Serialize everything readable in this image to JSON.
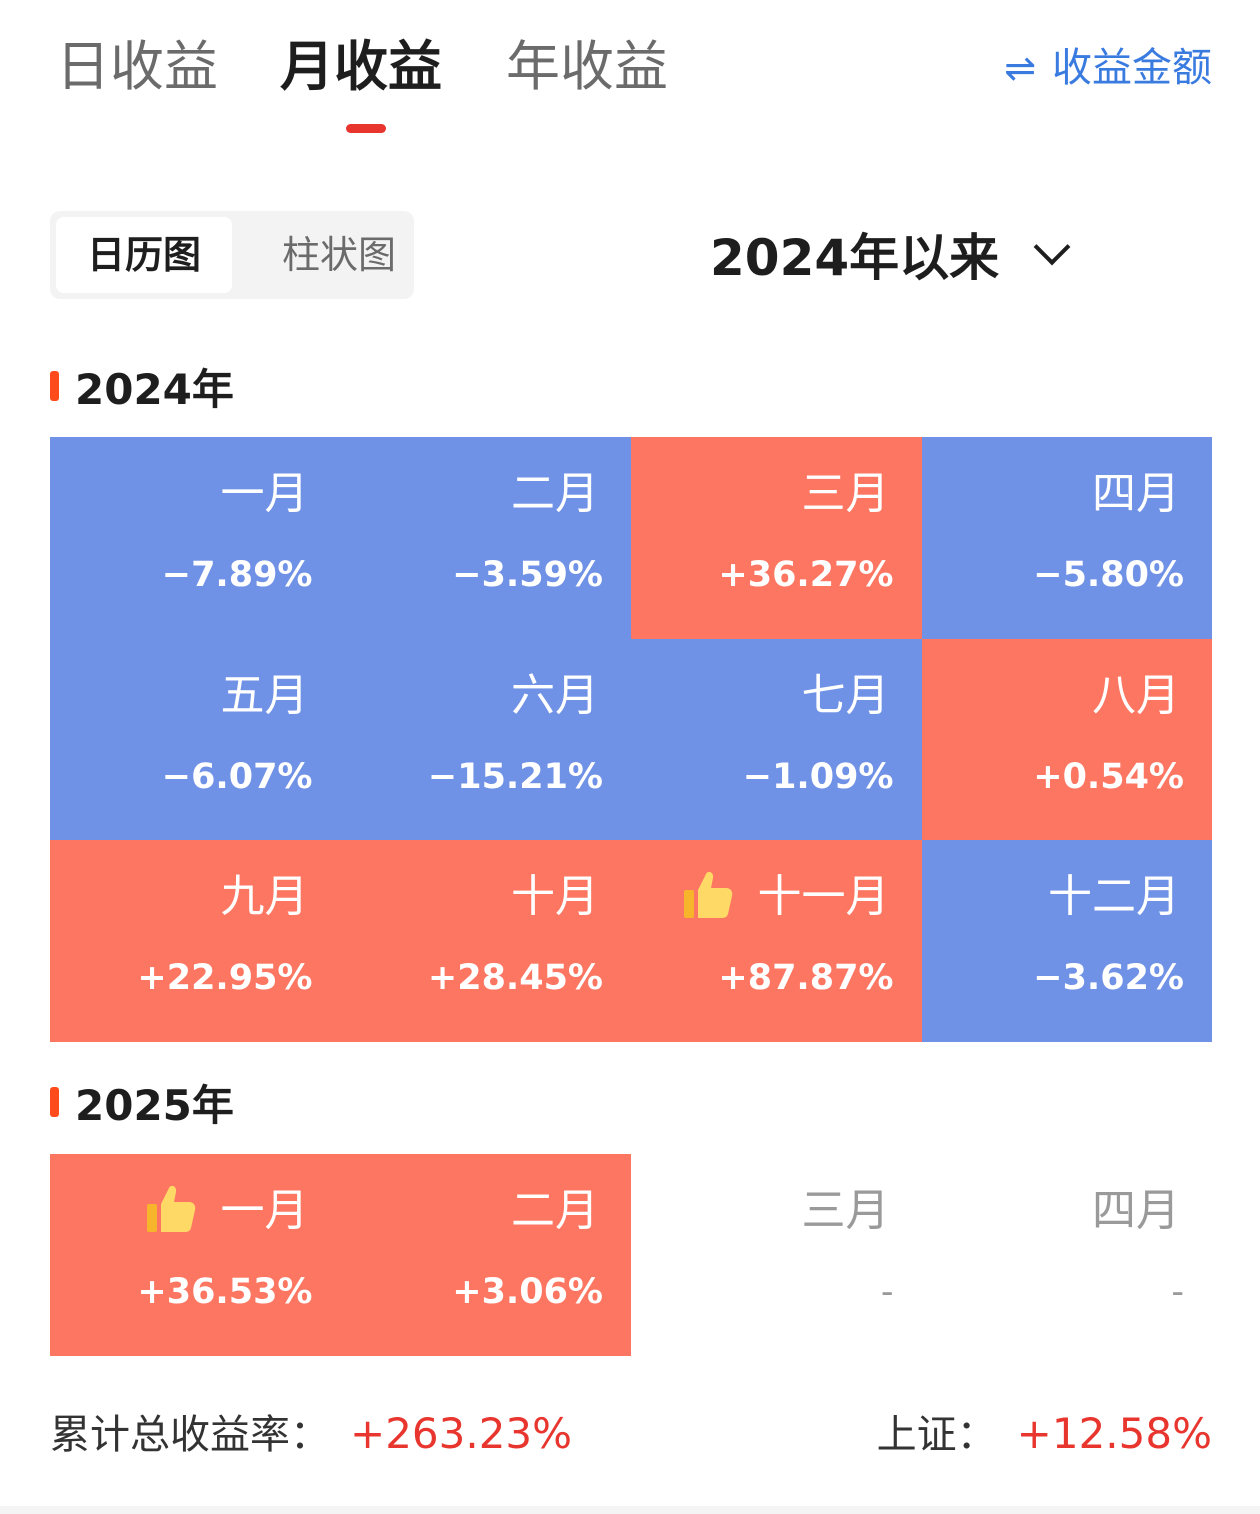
{
  "tabs": {
    "daily": "日收益",
    "monthly": "月收益",
    "yearly": "年收益",
    "amount_toggle": "收益金额",
    "swap_icon": "⇌"
  },
  "view": {
    "calendar": "日历图",
    "bar": "柱状图"
  },
  "range": {
    "label": "2024年以来"
  },
  "year2024": {
    "title": "2024年",
    "months": [
      {
        "name": "一月",
        "value": "−7.89%",
        "sign": "neg"
      },
      {
        "name": "二月",
        "value": "−3.59%",
        "sign": "neg"
      },
      {
        "name": "三月",
        "value": "+36.27%",
        "sign": "pos"
      },
      {
        "name": "四月",
        "value": "−5.80%",
        "sign": "neg"
      },
      {
        "name": "五月",
        "value": "−6.07%",
        "sign": "neg"
      },
      {
        "name": "六月",
        "value": "−15.21%",
        "sign": "neg"
      },
      {
        "name": "七月",
        "value": "−1.09%",
        "sign": "neg"
      },
      {
        "name": "八月",
        "value": "+0.54%",
        "sign": "pos"
      },
      {
        "name": "九月",
        "value": "+22.95%",
        "sign": "pos"
      },
      {
        "name": "十月",
        "value": "+28.45%",
        "sign": "pos"
      },
      {
        "name": "十一月",
        "value": "+87.87%",
        "sign": "pos",
        "best": true
      },
      {
        "name": "十二月",
        "value": "−3.62%",
        "sign": "neg"
      }
    ]
  },
  "year2025": {
    "title": "2025年",
    "months": [
      {
        "name": "一月",
        "value": "+36.53%",
        "sign": "pos",
        "best": true
      },
      {
        "name": "二月",
        "value": "+3.06%",
        "sign": "pos"
      },
      {
        "name": "三月",
        "value": "-",
        "sign": "empty"
      },
      {
        "name": "四月",
        "value": "-",
        "sign": "empty"
      }
    ]
  },
  "summary": {
    "total_label": "累计总收益率：",
    "total_value": "+263.23%",
    "index_label": "上证：",
    "index_value": "+12.58%"
  },
  "colors": {
    "positive": "#fd7662",
    "negative": "#7092e6",
    "accent_red": "#e8352e",
    "link_blue": "#3a7be0"
  },
  "icons": {
    "best_month": "thumbs-up-icon"
  }
}
